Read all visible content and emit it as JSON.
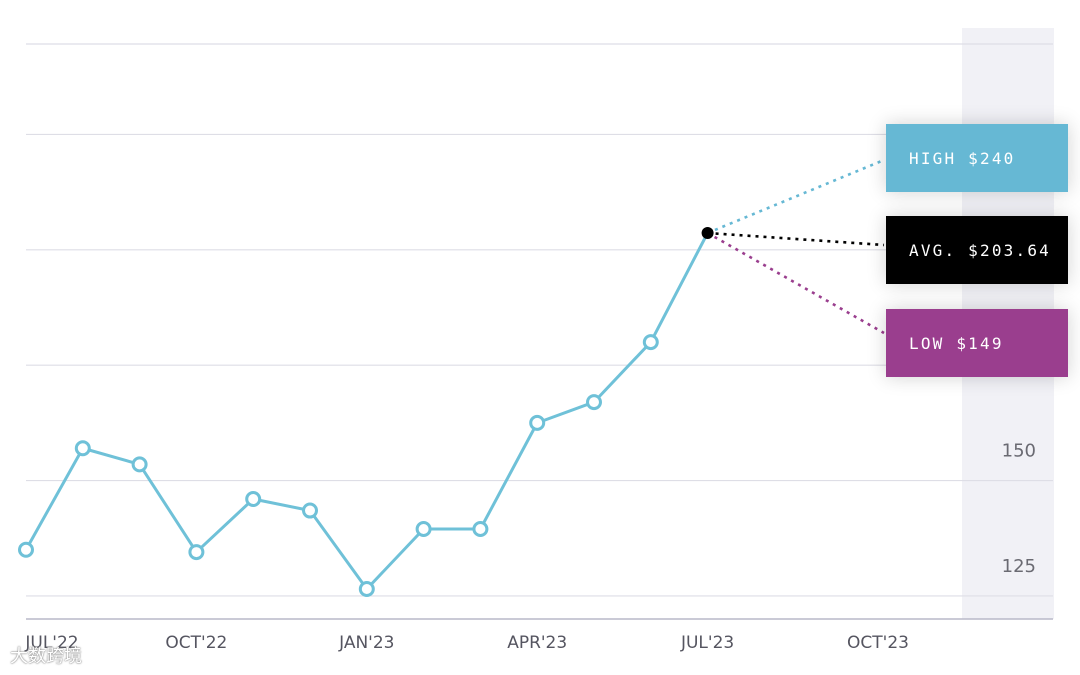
{
  "chart_data": {
    "type": "line",
    "title": "",
    "xlabel": "",
    "ylabel": "",
    "x_tick_labels": [
      "JUL'22",
      "OCT'22",
      "JAN'23",
      "APR'23",
      "JUL'23",
      "OCT'23"
    ],
    "y_tick_labels": [
      "125",
      "150"
    ],
    "ylim": [
      120,
      245
    ],
    "grid": true,
    "series": [
      {
        "x": [
          "2022-07",
          "2022-08",
          "2022-09",
          "2022-10",
          "2022-11",
          "2022-12",
          "2023-01",
          "2023-02",
          "2023-03",
          "2023-04",
          "2023-05",
          "2023-06",
          "2023-07"
        ],
        "values": [
          135,
          157,
          153.5,
          134.5,
          146,
          143.5,
          126.5,
          139.5,
          139.5,
          162.5,
          167,
          180,
          203.64
        ]
      }
    ],
    "forecast": {
      "at": "2023-07",
      "high": 240,
      "avg": 203.64,
      "low": 149,
      "high_label": "HIGH $240",
      "avg_label": "AVG. $203.64",
      "low_label": "LOW $149"
    },
    "colors": {
      "series": "#6fc1d8",
      "high": "#66b8d4",
      "avg": "#000000",
      "low": "#9a3e8e"
    }
  },
  "watermark": "大数跨境"
}
